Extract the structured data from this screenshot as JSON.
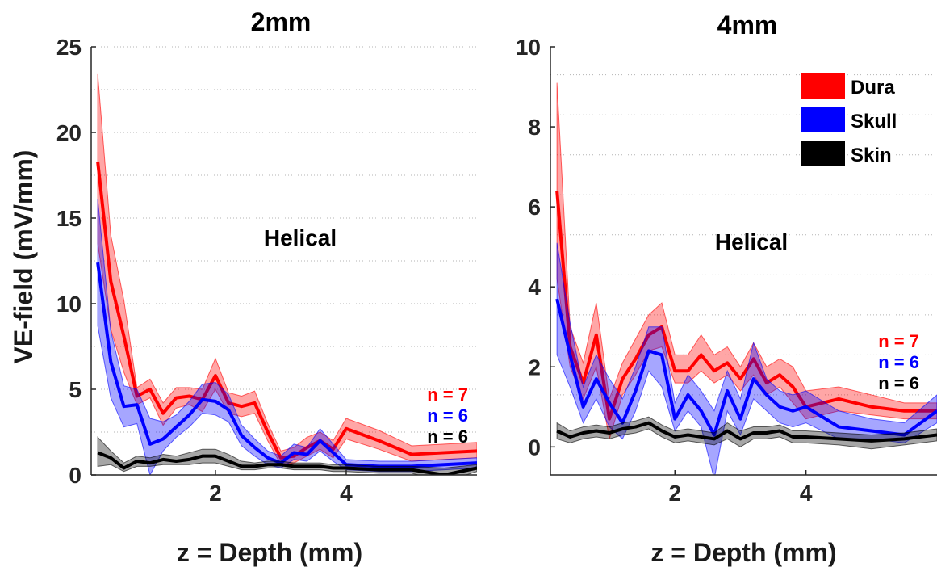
{
  "figure": {
    "ylabel": "VE-field (mV/mm)"
  },
  "chart_data": [
    {
      "type": "line",
      "title": "2mm",
      "xlabel": "z = Depth (mm)",
      "ylabel": "VE-field (mV/mm)",
      "annotation": "Helical",
      "xlim": [
        0.1,
        6.0
      ],
      "ylim": [
        0,
        25
      ],
      "xticks": [
        2,
        4
      ],
      "yticks": [
        0,
        5,
        10,
        15,
        20,
        25
      ],
      "grid": "dotted horizontal",
      "series": [
        {
          "name": "Dura",
          "color": "#ff0000",
          "n_label": "n = 7",
          "x": [
            0.2,
            0.4,
            0.6,
            0.8,
            1.0,
            1.2,
            1.4,
            1.6,
            1.8,
            2.0,
            2.2,
            2.4,
            2.6,
            2.8,
            3.0,
            3.2,
            3.4,
            3.6,
            3.8,
            4.0,
            4.5,
            5.0,
            5.5,
            6.0
          ],
          "values": [
            18.3,
            11.3,
            8.1,
            4.6,
            5.0,
            3.6,
            4.5,
            4.6,
            4.4,
            5.8,
            4.2,
            4.0,
            4.2,
            2.5,
            1.0,
            1.1,
            1.6,
            2.0,
            1.5,
            2.7,
            2.0,
            1.2,
            1.3,
            1.4
          ],
          "lower": [
            13.5,
            8.5,
            6.0,
            4.1,
            4.5,
            2.9,
            3.9,
            4.1,
            3.7,
            5.0,
            3.6,
            3.4,
            3.6,
            2.0,
            0.6,
            0.7,
            1.1,
            1.5,
            1.0,
            2.1,
            1.5,
            0.8,
            0.9,
            1.0
          ],
          "upper": [
            23.4,
            14.0,
            10.2,
            5.1,
            5.6,
            4.2,
            5.1,
            5.1,
            5.0,
            6.8,
            4.8,
            4.6,
            4.9,
            3.0,
            1.4,
            1.6,
            2.2,
            2.5,
            2.0,
            3.3,
            2.6,
            1.7,
            1.8,
            1.9
          ]
        },
        {
          "name": "Skull",
          "color": "#0000ff",
          "n_label": "n = 6",
          "x": [
            0.2,
            0.4,
            0.6,
            0.8,
            1.0,
            1.2,
            1.4,
            1.6,
            1.8,
            2.0,
            2.2,
            2.4,
            2.6,
            2.8,
            3.0,
            3.2,
            3.4,
            3.6,
            3.8,
            4.0,
            4.5,
            5.0,
            5.5,
            6.0
          ],
          "values": [
            12.4,
            6.6,
            4.0,
            4.1,
            1.8,
            2.1,
            2.8,
            3.5,
            4.4,
            4.3,
            3.8,
            2.3,
            1.6,
            1.0,
            0.7,
            1.3,
            1.2,
            2.0,
            1.3,
            0.6,
            0.5,
            0.5,
            0.6,
            0.7
          ],
          "lower": [
            8.7,
            4.5,
            2.8,
            3.0,
            0.0,
            1.4,
            2.2,
            2.8,
            3.6,
            3.5,
            3.1,
            1.7,
            1.1,
            0.6,
            0.4,
            0.9,
            0.8,
            1.4,
            0.8,
            0.3,
            0.2,
            0.2,
            0.3,
            0.4
          ],
          "upper": [
            16.1,
            8.4,
            5.2,
            5.0,
            3.3,
            3.1,
            3.5,
            4.3,
            5.3,
            5.4,
            4.7,
            2.9,
            2.1,
            1.4,
            1.1,
            1.8,
            1.6,
            2.7,
            1.8,
            0.9,
            0.8,
            0.8,
            0.9,
            1.0
          ]
        },
        {
          "name": "Skin",
          "color": "#000000",
          "n_label": "n = 6",
          "x": [
            0.2,
            0.4,
            0.6,
            0.8,
            1.0,
            1.2,
            1.4,
            1.6,
            1.8,
            2.0,
            2.2,
            2.4,
            2.6,
            2.8,
            3.0,
            3.2,
            3.4,
            3.6,
            3.8,
            4.0,
            4.5,
            5.0,
            5.5,
            6.0
          ],
          "values": [
            1.3,
            1.0,
            0.4,
            0.8,
            0.7,
            0.9,
            0.8,
            0.9,
            1.1,
            1.1,
            0.8,
            0.5,
            0.5,
            0.6,
            0.6,
            0.5,
            0.5,
            0.5,
            0.4,
            0.4,
            0.3,
            0.3,
            0.0,
            0.4
          ],
          "lower": [
            0.5,
            0.6,
            0.2,
            0.5,
            0.5,
            0.6,
            0.6,
            0.6,
            0.7,
            0.7,
            0.5,
            0.3,
            0.3,
            0.4,
            0.4,
            0.3,
            0.3,
            0.3,
            0.2,
            0.2,
            0.1,
            0.1,
            -0.4,
            0.2
          ],
          "upper": [
            2.2,
            1.4,
            0.7,
            1.1,
            1.0,
            1.2,
            1.1,
            1.3,
            1.5,
            1.5,
            1.2,
            0.8,
            0.7,
            0.8,
            0.8,
            0.7,
            0.7,
            0.7,
            0.6,
            0.6,
            0.5,
            0.5,
            0.4,
            0.6
          ]
        }
      ]
    },
    {
      "type": "line",
      "title": "4mm",
      "xlabel": "z = Depth (mm)",
      "ylabel": "",
      "annotation": "Helical",
      "legend_position": "top-right",
      "xlim": [
        0.1,
        6.0
      ],
      "ylim": [
        -0.7,
        10
      ],
      "xticks": [
        2,
        4
      ],
      "yticks": [
        0,
        2,
        4,
        6,
        8,
        10
      ],
      "grid": "dotted horizontal",
      "series": [
        {
          "name": "Dura",
          "color": "#ff0000",
          "n_label": "n = 7",
          "x": [
            0.2,
            0.4,
            0.6,
            0.8,
            1.0,
            1.2,
            1.4,
            1.6,
            1.8,
            2.0,
            2.2,
            2.4,
            2.6,
            2.8,
            3.0,
            3.2,
            3.4,
            3.6,
            3.8,
            4.0,
            4.5,
            5.0,
            5.5,
            6.0
          ],
          "values": [
            6.4,
            2.5,
            1.6,
            2.8,
            0.7,
            1.7,
            2.2,
            2.8,
            3.0,
            1.9,
            1.9,
            2.3,
            1.9,
            2.1,
            1.7,
            2.2,
            1.6,
            1.8,
            1.5,
            1.0,
            1.2,
            1.0,
            0.9,
            0.9
          ],
          "lower": [
            4.2,
            2.0,
            1.2,
            2.0,
            0.2,
            1.3,
            1.8,
            2.4,
            2.5,
            1.6,
            1.6,
            1.9,
            1.6,
            1.8,
            1.4,
            1.8,
            1.3,
            1.5,
            1.1,
            0.7,
            0.9,
            0.8,
            0.7,
            0.7
          ],
          "upper": [
            9.1,
            3.0,
            2.1,
            3.6,
            1.2,
            2.1,
            2.7,
            3.3,
            3.6,
            2.3,
            2.3,
            2.8,
            2.3,
            2.5,
            2.0,
            2.6,
            2.0,
            2.2,
            2.0,
            1.4,
            1.5,
            1.3,
            1.1,
            1.1
          ]
        },
        {
          "name": "Skull",
          "color": "#0000ff",
          "n_label": "n = 6",
          "x": [
            0.2,
            0.4,
            0.6,
            0.8,
            1.0,
            1.2,
            1.4,
            1.6,
            1.8,
            2.0,
            2.2,
            2.4,
            2.6,
            2.8,
            3.0,
            3.2,
            3.4,
            3.6,
            3.8,
            4.0,
            4.5,
            5.0,
            5.5,
            6.0
          ],
          "values": [
            3.7,
            2.3,
            1.0,
            1.7,
            1.1,
            0.6,
            1.4,
            2.4,
            2.3,
            0.7,
            1.3,
            0.9,
            0.3,
            1.4,
            0.7,
            1.7,
            1.3,
            1.0,
            0.9,
            1.0,
            0.5,
            0.4,
            0.3,
            0.9
          ],
          "lower": [
            2.3,
            1.5,
            0.6,
            1.2,
            0.5,
            0.2,
            0.9,
            1.9,
            1.5,
            0.4,
            0.9,
            0.5,
            -0.8,
            0.9,
            0.3,
            1.2,
            0.9,
            0.6,
            0.5,
            0.6,
            0.2,
            0.2,
            0.1,
            0.6
          ],
          "upper": [
            5.1,
            3.1,
            1.5,
            2.3,
            1.7,
            1.2,
            2.0,
            3.0,
            3.0,
            1.1,
            1.8,
            1.4,
            0.9,
            1.9,
            1.2,
            2.6,
            1.7,
            1.4,
            1.3,
            1.4,
            0.9,
            0.7,
            0.6,
            1.3
          ]
        },
        {
          "name": "Skin",
          "color": "#000000",
          "n_label": "n = 6",
          "x": [
            0.2,
            0.4,
            0.6,
            0.8,
            1.0,
            1.2,
            1.4,
            1.6,
            1.8,
            2.0,
            2.2,
            2.4,
            2.6,
            2.8,
            3.0,
            3.2,
            3.4,
            3.6,
            3.8,
            4.0,
            4.5,
            5.0,
            5.5,
            6.0
          ],
          "values": [
            0.4,
            0.25,
            0.35,
            0.4,
            0.35,
            0.45,
            0.5,
            0.6,
            0.4,
            0.25,
            0.3,
            0.25,
            0.2,
            0.4,
            0.2,
            0.35,
            0.35,
            0.4,
            0.25,
            0.25,
            0.2,
            0.15,
            0.2,
            0.3
          ],
          "lower": [
            0.2,
            0.1,
            0.2,
            0.25,
            0.2,
            0.3,
            0.35,
            0.45,
            0.25,
            0.1,
            0.15,
            0.1,
            0.05,
            0.2,
            0.0,
            0.2,
            0.2,
            0.25,
            0.1,
            0.1,
            0.05,
            -0.05,
            0.05,
            0.15
          ],
          "upper": [
            0.6,
            0.4,
            0.5,
            0.55,
            0.5,
            0.6,
            0.65,
            0.75,
            0.55,
            0.4,
            0.45,
            0.4,
            0.35,
            0.6,
            0.4,
            0.5,
            0.5,
            0.55,
            0.4,
            0.4,
            0.35,
            0.3,
            0.35,
            0.45
          ]
        }
      ]
    }
  ]
}
